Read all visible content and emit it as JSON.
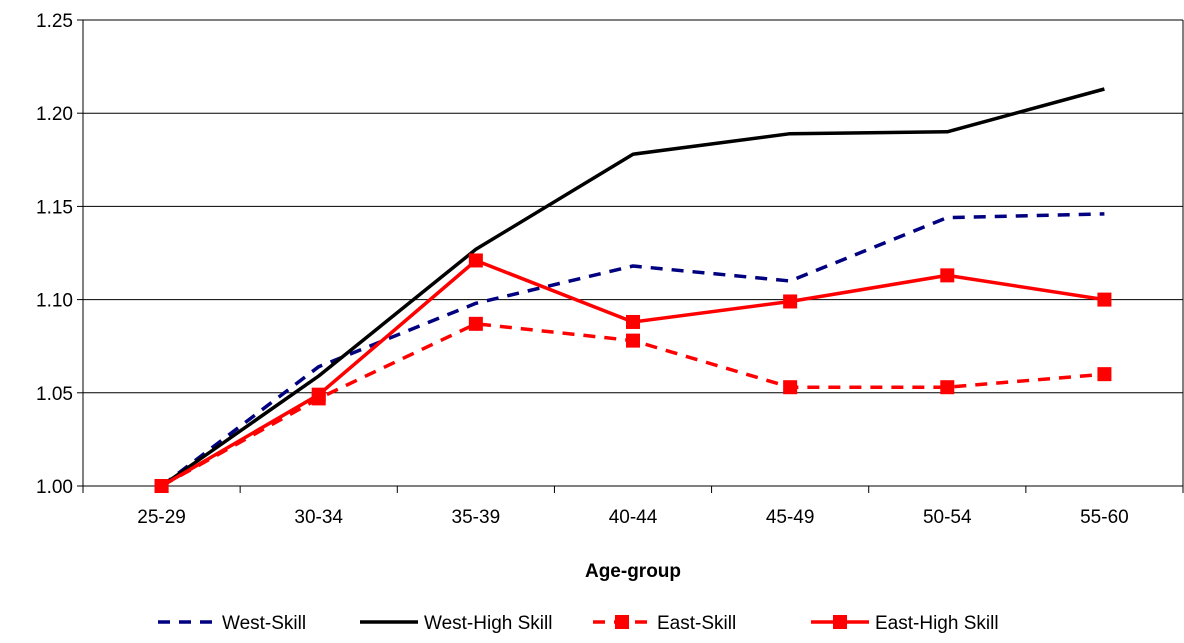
{
  "chart_data": {
    "type": "line",
    "title": "",
    "xlabel": "Age-group",
    "ylabel": "",
    "categories": [
      "25-29",
      "30-34",
      "35-39",
      "40-44",
      "45-49",
      "50-54",
      "55-60"
    ],
    "ylim": [
      1.0,
      1.25
    ],
    "yticks": [
      1.0,
      1.05,
      1.1,
      1.15,
      1.2,
      1.25
    ],
    "ytick_labels": [
      "1.00",
      "1.05",
      "1.10",
      "1.15",
      "1.20",
      "1.25"
    ],
    "grid": "horizontal",
    "legend_position": "bottom",
    "series": [
      {
        "name": "West-Skill",
        "values": [
          1.0,
          1.064,
          1.098,
          1.118,
          1.11,
          1.144,
          1.146
        ],
        "color": "#000080",
        "dash": "dashed",
        "marker": "none"
      },
      {
        "name": "West-High Skill",
        "values": [
          1.0,
          1.059,
          1.127,
          1.178,
          1.189,
          1.19,
          1.213
        ],
        "color": "#000000",
        "dash": "solid",
        "marker": "none"
      },
      {
        "name": "East-Skill",
        "values": [
          1.0,
          1.047,
          1.087,
          1.078,
          1.053,
          1.053,
          1.06
        ],
        "color": "#ff0000",
        "dash": "dashed",
        "marker": "square"
      },
      {
        "name": "East-High Skill",
        "values": [
          1.0,
          1.049,
          1.121,
          1.088,
          1.099,
          1.113,
          1.1
        ],
        "color": "#ff0000",
        "dash": "solid",
        "marker": "square"
      }
    ]
  }
}
